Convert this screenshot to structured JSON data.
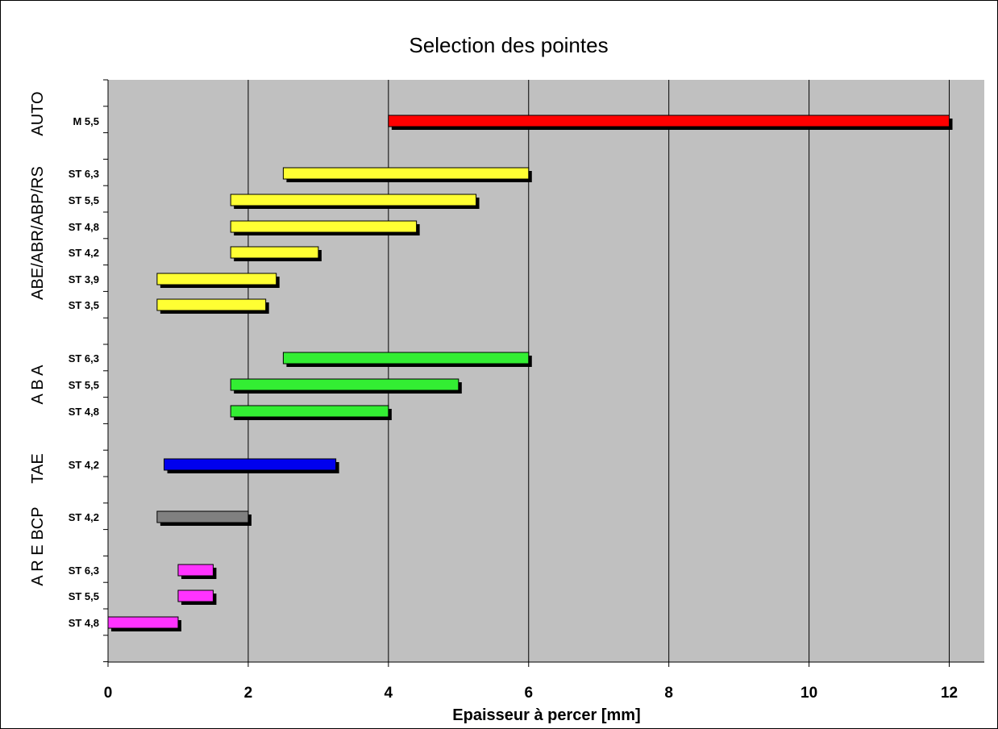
{
  "chart_data": {
    "type": "bar",
    "orientation": "horizontal-floating",
    "title": "Selection des pointes",
    "xlabel": "Epaisseur à percer [mm]",
    "xlim": [
      0,
      12.5
    ],
    "xticks": [
      0,
      2,
      4,
      6,
      8,
      10,
      12
    ],
    "grid": "vertical",
    "rows": [
      {
        "group": "AUTO",
        "label": "M 5,5",
        "start": 4,
        "end": 12,
        "color": "#ff0000"
      },
      {
        "group": "ABE/ABR/ABP/RS",
        "label": "ST 6,3",
        "start": 2.5,
        "end": 6,
        "color": "#ffff33"
      },
      {
        "group": "ABE/ABR/ABP/RS",
        "label": "ST 5,5",
        "start": 1.75,
        "end": 5.25,
        "color": "#ffff33"
      },
      {
        "group": "ABE/ABR/ABP/RS",
        "label": "ST 4,8",
        "start": 1.75,
        "end": 4.4,
        "color": "#ffff33"
      },
      {
        "group": "ABE/ABR/ABP/RS",
        "label": "ST 4,2",
        "start": 1.75,
        "end": 3.0,
        "color": "#ffff33"
      },
      {
        "group": "ABE/ABR/ABP/RS",
        "label": "ST 3,9",
        "start": 0.7,
        "end": 2.4,
        "color": "#ffff33"
      },
      {
        "group": "ABE/ABR/ABP/RS",
        "label": "ST 3,5",
        "start": 0.7,
        "end": 2.25,
        "color": "#ffff33"
      },
      {
        "group": "ABA",
        "label": "ST 6,3",
        "start": 2.5,
        "end": 6,
        "color": "#33ee33"
      },
      {
        "group": "ABA",
        "label": "ST 5,5",
        "start": 1.75,
        "end": 5.0,
        "color": "#33ee33"
      },
      {
        "group": "ABA",
        "label": "ST 4,8",
        "start": 1.75,
        "end": 4.0,
        "color": "#33ee33"
      },
      {
        "group": "TAE",
        "label": "ST 4,2",
        "start": 0.8,
        "end": 3.25,
        "color": "#0000ee"
      },
      {
        "group": "BCP",
        "label": "ST 4,2",
        "start": 0.7,
        "end": 2.0,
        "color": "#808080"
      },
      {
        "group": "ARE",
        "label": "ST 6,3",
        "start": 1.0,
        "end": 1.5,
        "color": "#ff33ff"
      },
      {
        "group": "ARE",
        "label": "ST 5,5",
        "start": 1.0,
        "end": 1.5,
        "color": "#ff33ff"
      },
      {
        "group": "ARE",
        "label": "ST 4,8",
        "start": 0,
        "end": 1.0,
        "color": "#ff33ff"
      }
    ],
    "groups": [
      "AUTO",
      "ABE/ABR/ABP/RS",
      "ABA",
      "TAE",
      "BCP",
      "ARE"
    ],
    "colors": {
      "plot_background": "#c0c0c0",
      "gridline": "#000000",
      "shadow": "#000000"
    }
  }
}
